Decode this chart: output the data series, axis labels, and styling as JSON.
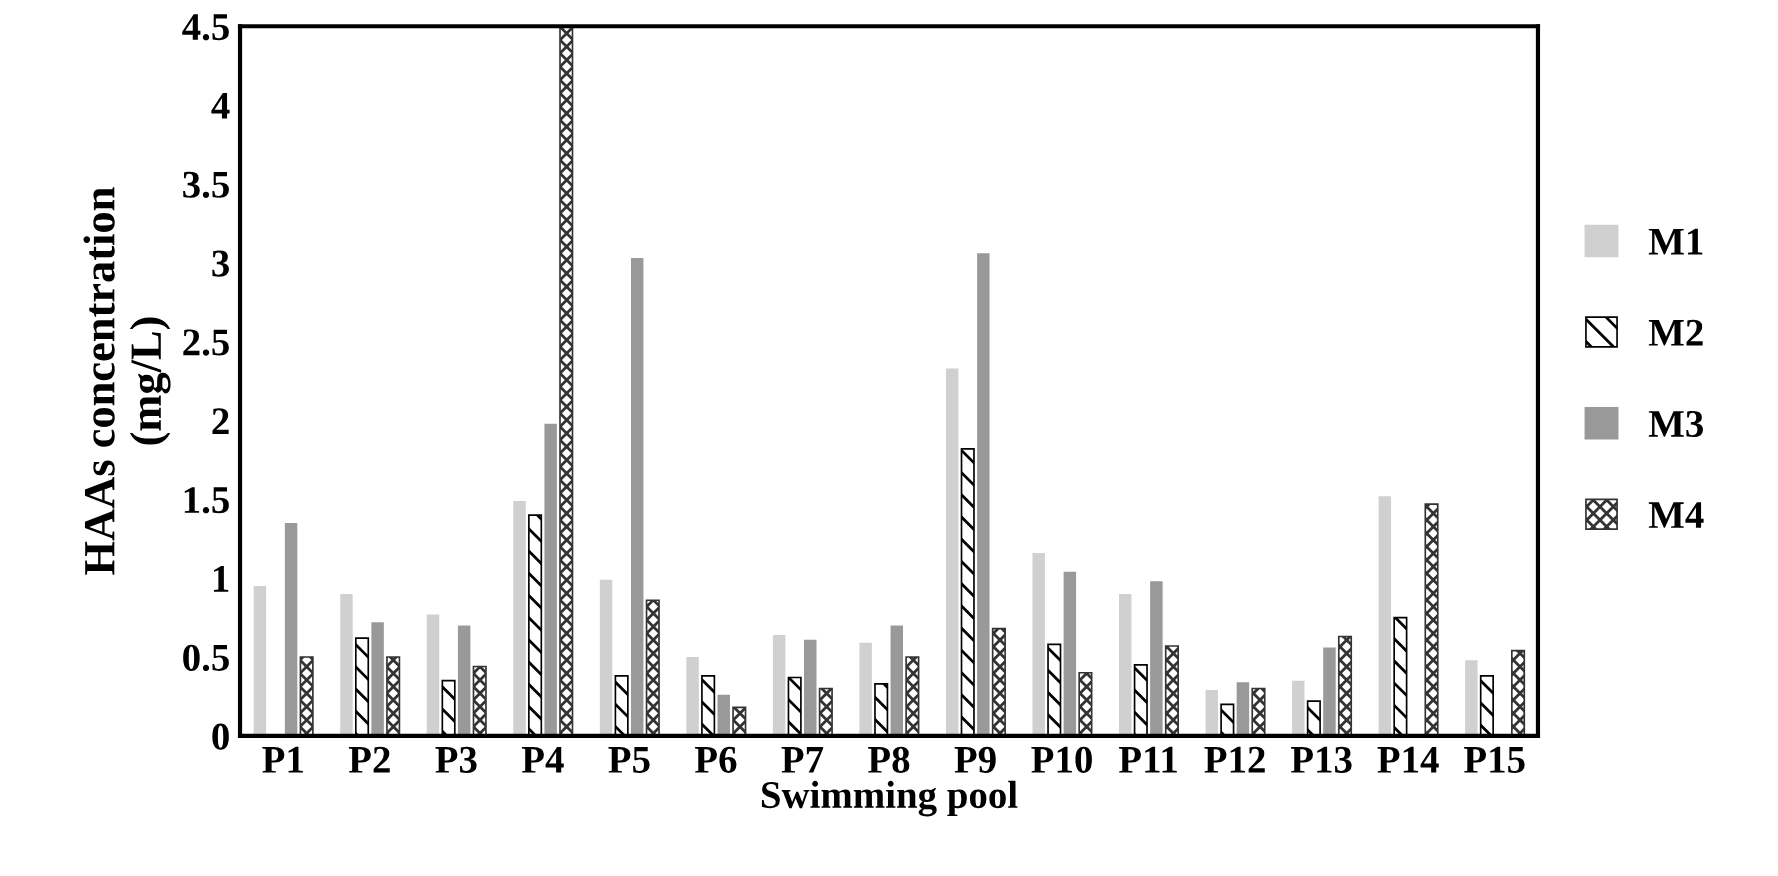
{
  "chart_data": {
    "type": "bar",
    "xlabel": "Swimming pool",
    "ylabel": "HAAs concentration\n(mg/L)",
    "categories": [
      "P1",
      "P2",
      "P3",
      "P4",
      "P5",
      "P6",
      "P7",
      "P8",
      "P9",
      "P10",
      "P11",
      "P12",
      "P13",
      "P14",
      "P15"
    ],
    "series": [
      {
        "name": "M1",
        "color": "#d0d0d0",
        "values": [
          0.95,
          0.9,
          0.77,
          1.49,
          0.99,
          0.5,
          0.64,
          0.59,
          2.33,
          1.16,
          0.9,
          0.29,
          0.35,
          1.52,
          0.48
        ]
      },
      {
        "name": "M2",
        "color": "#000000",
        "values": [
          null,
          0.62,
          0.35,
          1.4,
          0.38,
          0.38,
          0.37,
          0.33,
          1.82,
          0.58,
          0.45,
          0.2,
          0.22,
          0.75,
          0.38
        ]
      },
      {
        "name": "M3",
        "color": "#999999",
        "values": [
          1.35,
          0.72,
          0.7,
          1.98,
          3.03,
          0.26,
          0.61,
          0.7,
          3.06,
          1.04,
          0.98,
          0.34,
          0.56,
          null,
          null
        ]
      },
      {
        "name": "M4",
        "color": "#333333",
        "values": [
          0.5,
          0.5,
          0.44,
          4.5,
          0.86,
          0.18,
          0.3,
          0.5,
          0.68,
          0.4,
          0.57,
          0.3,
          0.63,
          1.47,
          0.54
        ]
      }
    ],
    "ylim": [
      0,
      4.5
    ],
    "yticks": [
      0,
      0.5,
      1,
      1.5,
      2,
      2.5,
      3,
      3.5,
      4,
      4.5
    ],
    "grid": false,
    "legend": "right"
  }
}
